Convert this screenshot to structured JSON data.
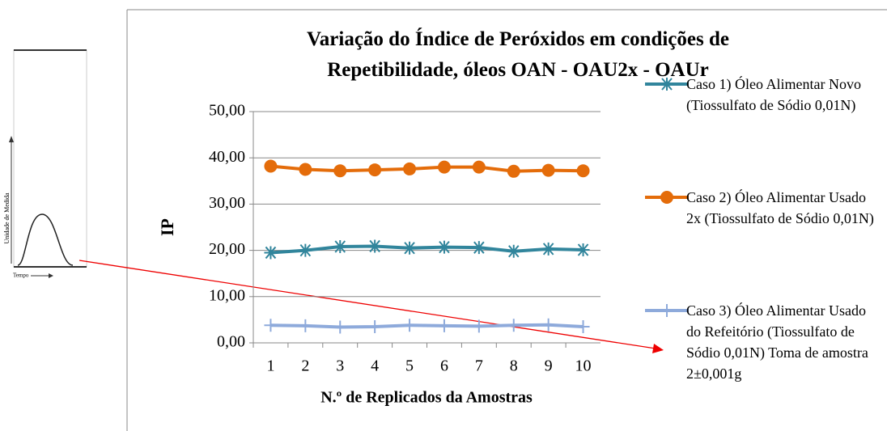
{
  "chart_data": {
    "type": "line",
    "title": "Variação do Índice de Peróxidos em condições de Repetibilidade, óleos OAN - OAU2x - OAUr",
    "x_label": "N.º de Replicados da Amostras",
    "y_label": "IP",
    "categories": [
      "1",
      "2",
      "3",
      "4",
      "5",
      "6",
      "7",
      "8",
      "9",
      "10"
    ],
    "ylim": [
      0,
      50
    ],
    "yticks": [
      {
        "value": 0,
        "label": "0,00"
      },
      {
        "value": 10,
        "label": "10,00"
      },
      {
        "value": 20,
        "label": "20,00"
      },
      {
        "value": 30,
        "label": "30,00"
      },
      {
        "value": 40,
        "label": "40,00"
      },
      {
        "value": 50,
        "label": "50,00"
      }
    ],
    "series": [
      {
        "name": "Caso 1) Óleo Alimentar Novo (Tiossulfato de Sódio 0,01N)",
        "color": "#31859c",
        "marker": "asterisk",
        "values": [
          19.5,
          20.0,
          20.8,
          20.9,
          20.5,
          20.7,
          20.6,
          19.8,
          20.3,
          20.1
        ]
      },
      {
        "name": "Caso 2) Óleo Alimentar Usado 2x (Tiossulfato de Sódio 0,01N)",
        "color": "#e46c0a",
        "marker": "circle",
        "values": [
          38.2,
          37.5,
          37.2,
          37.4,
          37.6,
          38.0,
          38.0,
          37.1,
          37.3,
          37.2
        ]
      },
      {
        "name": "Caso 3) Óleo Alimentar Usado do Refeitório (Tiossulfato de Sódio 0,01N) Toma de amostra 2±0,001g",
        "color": "#8eaadb",
        "marker": "plus",
        "values": [
          3.8,
          3.7,
          3.4,
          3.5,
          3.8,
          3.7,
          3.6,
          3.8,
          3.9,
          3.5
        ]
      }
    ]
  },
  "inset": {
    "y_label": "Unidade de Medida",
    "x_label": "Tempo"
  }
}
